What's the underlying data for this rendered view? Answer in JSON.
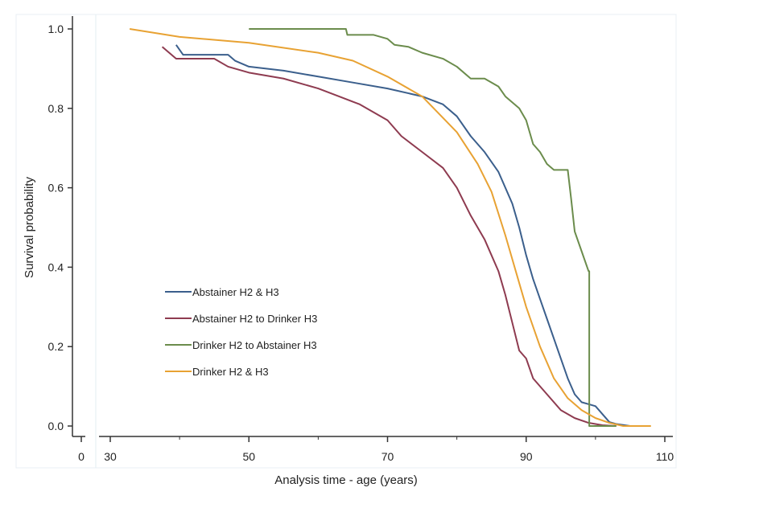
{
  "chart_data": {
    "type": "line",
    "subtype": "kaplan-meier step survival curves",
    "title": "",
    "xlabel": "Analysis time - age (years)",
    "ylabel": "Survival probability",
    "x_ticks": [
      0,
      30,
      50,
      70,
      90,
      110
    ],
    "x_minor_ticks": [
      40,
      60,
      80,
      100
    ],
    "x_axis_broken": true,
    "y_ticks": [
      "0.0",
      "0.2",
      "0.4",
      "0.6",
      "0.8",
      "1.0"
    ],
    "xlim": [
      30,
      110
    ],
    "ylim": [
      0,
      1
    ],
    "grid": false,
    "legend_position": "inside lower-left",
    "series": [
      {
        "name": "Abstainer H2 & H3",
        "color": "#3b5f8c",
        "x": [
          39.5,
          40.5,
          47,
          48,
          50,
          55,
          60,
          65,
          70,
          75,
          78,
          80,
          82,
          84,
          86,
          88,
          89,
          90,
          91,
          92,
          93,
          94,
          95,
          96,
          97,
          98,
          99,
          100,
          101,
          102,
          103,
          105
        ],
        "y": [
          0.96,
          0.935,
          0.935,
          0.92,
          0.905,
          0.895,
          0.88,
          0.865,
          0.85,
          0.83,
          0.81,
          0.78,
          0.73,
          0.69,
          0.64,
          0.56,
          0.5,
          0.43,
          0.37,
          0.32,
          0.27,
          0.22,
          0.17,
          0.12,
          0.08,
          0.06,
          0.055,
          0.05,
          0.03,
          0.01,
          0.005,
          0
        ]
      },
      {
        "name": "Abstainer H2 to Drinker H3",
        "color": "#8e3b50",
        "x": [
          37.5,
          39.5,
          45,
          47,
          50,
          55,
          60,
          63,
          66,
          70,
          72,
          75,
          78,
          80,
          82,
          84,
          86,
          87,
          88,
          89,
          90,
          91,
          93,
          95,
          97,
          99,
          101,
          103
        ],
        "y": [
          0.955,
          0.925,
          0.925,
          0.905,
          0.89,
          0.875,
          0.85,
          0.83,
          0.81,
          0.77,
          0.73,
          0.69,
          0.65,
          0.6,
          0.53,
          0.47,
          0.39,
          0.33,
          0.26,
          0.19,
          0.17,
          0.12,
          0.08,
          0.04,
          0.02,
          0.008,
          0.002,
          0
        ]
      },
      {
        "name": "Drinker H2 to Abstainer H3",
        "color": "#6b8c4c",
        "x": [
          50,
          64,
          64.2,
          68,
          70,
          71,
          73,
          75,
          78,
          80,
          82,
          84,
          86,
          87,
          89,
          90,
          91,
          92,
          93,
          94,
          96,
          96.5,
          97,
          98,
          99,
          99.1,
          103
        ],
        "y": [
          1.0,
          1.0,
          0.985,
          0.985,
          0.975,
          0.96,
          0.955,
          0.94,
          0.925,
          0.905,
          0.875,
          0.875,
          0.855,
          0.83,
          0.8,
          0.77,
          0.71,
          0.69,
          0.66,
          0.645,
          0.645,
          0.57,
          0.49,
          0.44,
          0.39,
          0.0,
          0
        ]
      },
      {
        "name": "Drinker H2 & H3",
        "color": "#e8a233",
        "x": [
          32.8,
          40,
          50,
          60,
          65,
          70,
          75,
          80,
          83,
          85,
          87,
          89,
          90,
          92,
          94,
          96,
          98,
          100,
          102,
          104,
          108
        ],
        "y": [
          1.0,
          0.98,
          0.965,
          0.94,
          0.92,
          0.88,
          0.83,
          0.74,
          0.66,
          0.59,
          0.48,
          0.36,
          0.3,
          0.2,
          0.12,
          0.07,
          0.04,
          0.02,
          0.008,
          0,
          0
        ]
      }
    ]
  }
}
